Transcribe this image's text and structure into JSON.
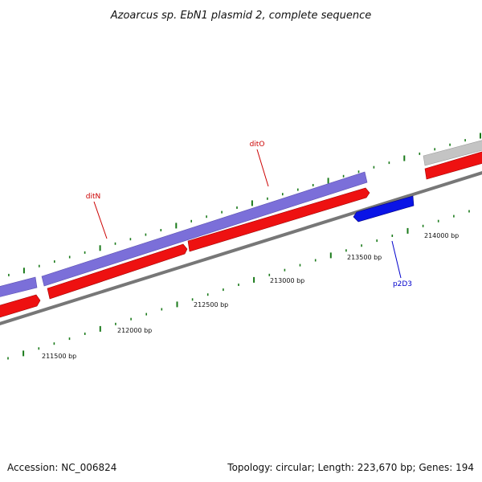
{
  "title": "Azoarcus sp. EbN1 plasmid 2, complete sequence",
  "footer": {
    "accession": "Accession: NC_006824",
    "summary": "Topology: circular; Length: 223,670 bp; Genes: 194"
  },
  "colors": {
    "forward_cds": "#7b6fd9",
    "reverse_cds": "#ee1111",
    "p2D3_gene": "#0a14e6",
    "other_feature": "#c4c4c4",
    "backbone": "#777777",
    "ticks": "#1a7a1a",
    "label_ditN": "#cc0000",
    "label_ditO": "#cc0000",
    "label_p2D3": "#0000cc"
  },
  "ruler": [
    {
      "label": "211500 bp"
    },
    {
      "label": "212000 bp"
    },
    {
      "label": "212500 bp"
    },
    {
      "label": "213000 bp"
    },
    {
      "label": "213500 bp"
    },
    {
      "label": "214000 bp"
    }
  ],
  "gene_labels": {
    "ditN": "ditN",
    "ditO": "ditO",
    "p2D3": "p2D3"
  }
}
